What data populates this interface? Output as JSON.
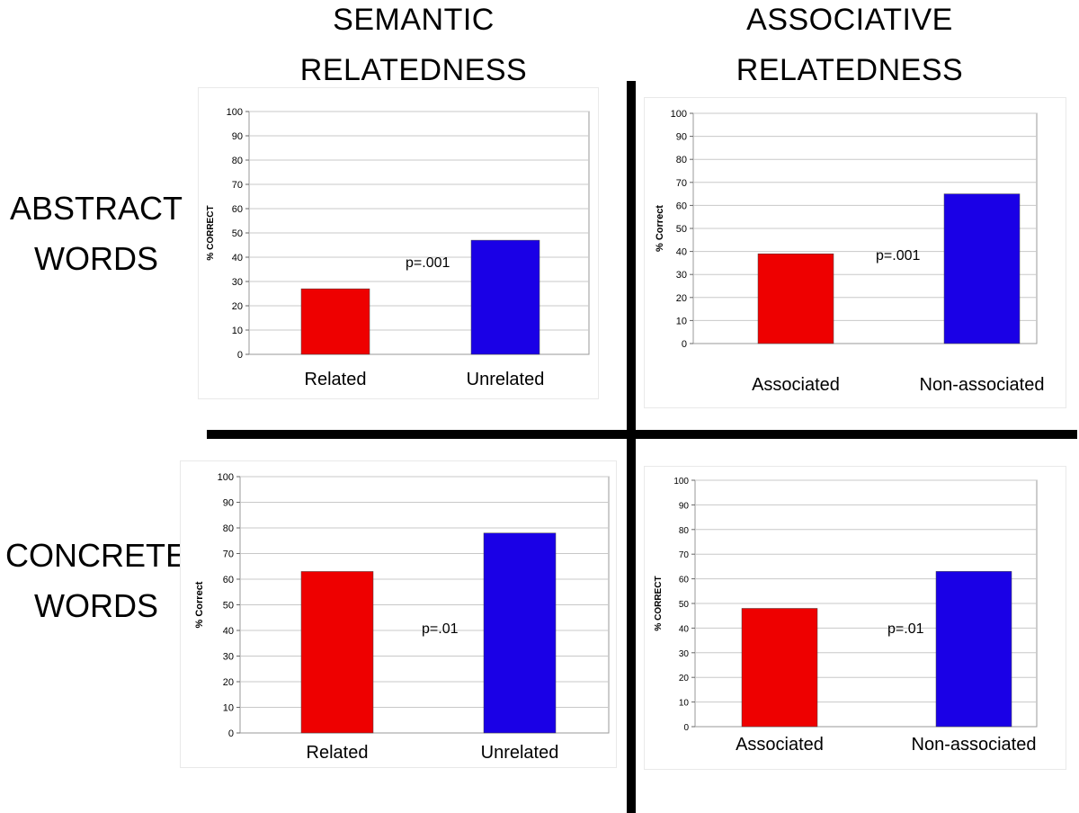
{
  "column_headers": [
    {
      "line1": "SEMANTIC",
      "line2": "RELATEDNESS"
    },
    {
      "line1": "ASSOCIATIVE",
      "line2": "RELATEDNESS"
    }
  ],
  "row_labels": [
    {
      "line1": "ABSTRACT",
      "line2": "WORDS"
    },
    {
      "line1": "CONCRETE",
      "line2": "WORDS"
    }
  ],
  "colors": {
    "red": "#ee0000",
    "blue": "#1a00e6"
  },
  "chart_data": [
    {
      "id": "tl",
      "type": "bar",
      "quadrant": "abstract-semantic",
      "categories": [
        "Related",
        "Unrelated"
      ],
      "values": [
        27,
        47
      ],
      "ylabel": "% CORRECT",
      "ylim": [
        0,
        100
      ],
      "ticks": [
        0,
        10,
        20,
        30,
        40,
        50,
        60,
        70,
        80,
        90,
        100
      ],
      "annotation": "p=.001",
      "grid": true
    },
    {
      "id": "tr",
      "type": "bar",
      "quadrant": "abstract-associative",
      "categories": [
        "Associated",
        "Non-associated"
      ],
      "values": [
        39,
        65
      ],
      "ylabel": "% Correct",
      "ylim": [
        0,
        100
      ],
      "ticks": [
        0,
        10,
        20,
        30,
        40,
        50,
        60,
        70,
        80,
        90,
        100
      ],
      "annotation": "p=.001",
      "grid": true
    },
    {
      "id": "bl",
      "type": "bar",
      "quadrant": "concrete-semantic",
      "categories": [
        "Related",
        "Unrelated"
      ],
      "values": [
        63,
        78
      ],
      "ylabel": "% Correct",
      "ylim": [
        0,
        100
      ],
      "ticks": [
        0,
        10,
        20,
        30,
        40,
        50,
        60,
        70,
        80,
        90,
        100
      ],
      "annotation": "p=.01",
      "grid": true
    },
    {
      "id": "br",
      "type": "bar",
      "quadrant": "concrete-associative",
      "categories": [
        "Associated",
        "Non-associated"
      ],
      "values": [
        48,
        63
      ],
      "ylabel": "% CORRECT",
      "ylim": [
        0,
        100
      ],
      "ticks": [
        0,
        10,
        20,
        30,
        40,
        50,
        60,
        70,
        80,
        90,
        100
      ],
      "annotation": "p=.01",
      "grid": true
    }
  ]
}
